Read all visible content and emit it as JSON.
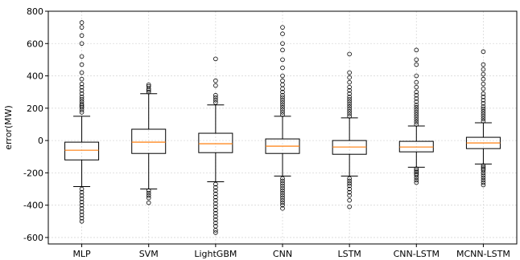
{
  "chart_data": {
    "type": "box",
    "ylabel": "error(MW)",
    "ylim": [
      -640,
      800
    ],
    "yticks": [
      -600,
      -400,
      -200,
      0,
      200,
      400,
      600,
      800
    ],
    "y_tick_labels": [
      "-600",
      "-400",
      "-200",
      "0",
      "200",
      "400",
      "600",
      "800"
    ],
    "grid": true,
    "categories": [
      "MLP",
      "SVM",
      "LightGBM",
      "CNN",
      "LSTM",
      "CNN-LSTM",
      "MCNN-LSTM"
    ],
    "boxes": [
      {
        "category": "MLP",
        "whisker_low": -285,
        "q1": -120,
        "median": -60,
        "q3": -10,
        "whisker_high": 150,
        "outliers_high": [
          175,
          190,
          205,
          215,
          225,
          240,
          255,
          270,
          290,
          310,
          330,
          350,
          380,
          420,
          470,
          520,
          600,
          650,
          700,
          730
        ],
        "outliers_low": [
          -300,
          -320,
          -340,
          -360,
          -380,
          -400,
          -420,
          -440,
          -460,
          -480,
          -500
        ]
      },
      {
        "category": "SVM",
        "whisker_low": -300,
        "q1": -80,
        "median": -10,
        "q3": 70,
        "whisker_high": 290,
        "outliers_high": [
          300,
          310,
          320,
          335,
          345
        ],
        "outliers_low": [
          -310,
          -325,
          -340,
          -355,
          -385
        ]
      },
      {
        "category": "LightGBM",
        "whisker_low": -255,
        "q1": -75,
        "median": -20,
        "q3": 45,
        "whisker_high": 220,
        "outliers_high": [
          235,
          250,
          265,
          280,
          340,
          370,
          505
        ],
        "outliers_low": [
          -270,
          -290,
          -310,
          -330,
          -350,
          -370,
          -390,
          -410,
          -430,
          -450,
          -470,
          -490,
          -510,
          -530,
          -555,
          -570
        ]
      },
      {
        "category": "CNN",
        "whisker_low": -220,
        "q1": -80,
        "median": -35,
        "q3": 10,
        "whisker_high": 150,
        "outliers_high": [
          160,
          175,
          190,
          205,
          220,
          235,
          250,
          265,
          280,
          300,
          320,
          345,
          370,
          400,
          450,
          500,
          560,
          600,
          660,
          700
        ],
        "outliers_low": [
          -235,
          -250,
          -265,
          -280,
          -295,
          -310,
          -325,
          -340,
          -355,
          -370,
          -385,
          -400,
          -420
        ]
      },
      {
        "category": "LSTM",
        "whisker_low": -220,
        "q1": -85,
        "median": -40,
        "q3": 0,
        "whisker_high": 140,
        "outliers_high": [
          150,
          165,
          180,
          195,
          210,
          225,
          240,
          255,
          270,
          290,
          310,
          330,
          360,
          390,
          420,
          535
        ],
        "outliers_low": [
          -235,
          -250,
          -265,
          -280,
          -300,
          -320,
          -340,
          -370,
          -410
        ]
      },
      {
        "category": "CNN-LSTM",
        "whisker_low": -165,
        "q1": -70,
        "median": -40,
        "q3": -5,
        "whisker_high": 90,
        "outliers_high": [
          100,
          115,
          130,
          145,
          160,
          175,
          190,
          205,
          220,
          240,
          260,
          280,
          300,
          330,
          360,
          400,
          470,
          500,
          560
        ],
        "outliers_low": [
          -175,
          -185,
          -195,
          -205,
          -215,
          -230,
          -245,
          -260
        ]
      },
      {
        "category": "MCNN-LSTM",
        "whisker_low": -145,
        "q1": -50,
        "median": -15,
        "q3": 20,
        "whisker_high": 110,
        "outliers_high": [
          120,
          135,
          150,
          165,
          180,
          195,
          210,
          230,
          250,
          270,
          290,
          320,
          350,
          380,
          410,
          440,
          470,
          550
        ],
        "outliers_low": [
          -155,
          -165,
          -175,
          -185,
          -200,
          -215,
          -230,
          -245,
          -260,
          -275
        ]
      }
    ],
    "colors": {
      "box_edge": "#000000",
      "median": "#ff7f0e",
      "grid": "#d9d9d9",
      "whisker": "#000000",
      "flier": "#000000"
    }
  }
}
